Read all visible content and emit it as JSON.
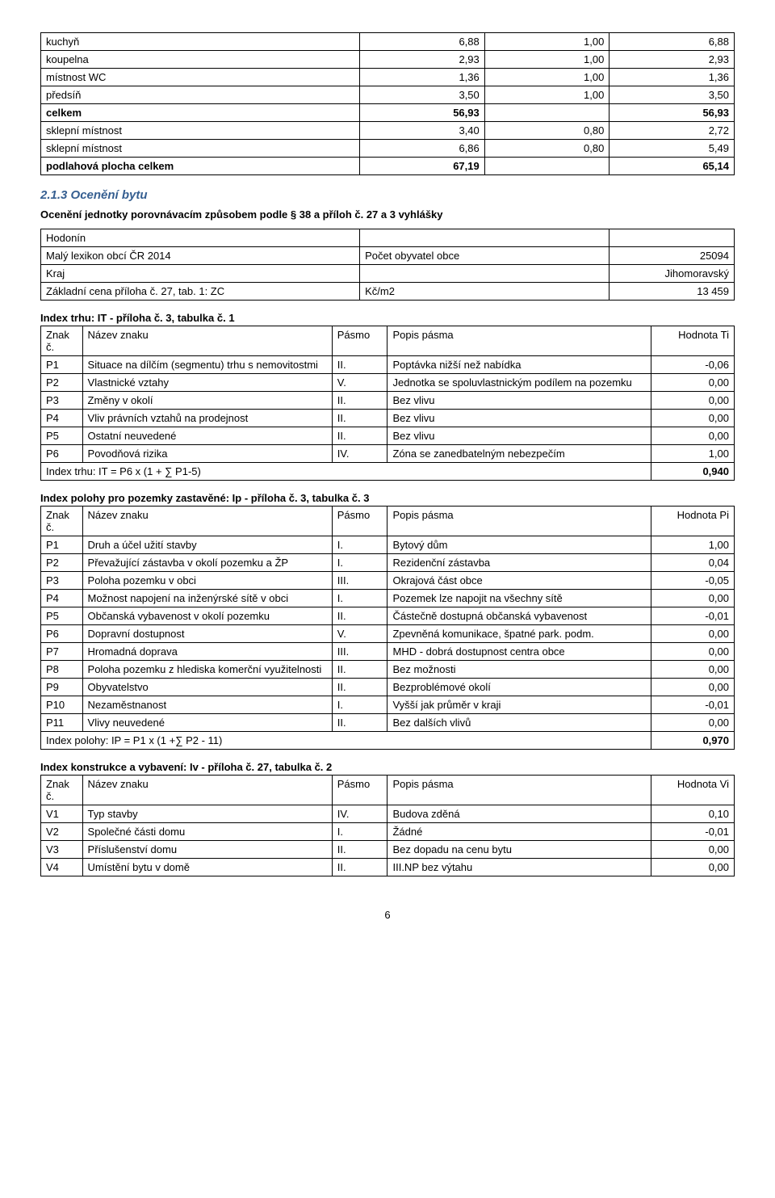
{
  "areas_table": {
    "rows": [
      {
        "name": "kuchyň",
        "a": "6,88",
        "b": "1,00",
        "c": "6,88"
      },
      {
        "name": "koupelna",
        "a": "2,93",
        "b": "1,00",
        "c": "2,93"
      },
      {
        "name": "místnost WC",
        "a": "1,36",
        "b": "1,00",
        "c": "1,36"
      },
      {
        "name": "předsíň",
        "a": "3,50",
        "b": "1,00",
        "c": "3,50"
      }
    ],
    "celkem_row": {
      "name": "celkem",
      "a": "56,93",
      "c": "56,93"
    },
    "sklep1": {
      "name": "sklepní místnost",
      "a": "3,40",
      "b": "0,80",
      "c": "2,72"
    },
    "sklep2": {
      "name": "sklepní místnost",
      "a": "6,86",
      "b": "0,80",
      "c": "5,49"
    },
    "plocha": {
      "name": "podlahová plocha celkem",
      "a": "67,19",
      "c": "65,14"
    }
  },
  "section_title": "2.1.3 Ocenění bytu",
  "intro": "Ocenění jednotky porovnávacím způsobem podle § 38 a příloh č. 27 a 3 vyhlášky",
  "base_table": {
    "rows": [
      [
        "Hodonín",
        "",
        ""
      ],
      [
        "Malý lexikon obcí ČR 2014",
        "Počet obyvatel obce",
        "25094"
      ],
      [
        "Kraj",
        "",
        "Jihomoravský"
      ],
      [
        "Základní cena příloha č. 27, tab. 1: ZC",
        "Kč/m2",
        "13 459"
      ]
    ]
  },
  "it_head": "Index trhu:   IT - příloha č. 3, tabulka č. 1",
  "hdr": {
    "c1": "Znak č.",
    "c2": "Název znaku",
    "c3": "Pásmo",
    "c4": "Popis pásma",
    "c5ti": "Hodnota Ti",
    "c5pi": "Hodnota Pi",
    "c5vi": "Hodnota Vi"
  },
  "it_rows": [
    {
      "k": "P1",
      "n": "Situace na dílčím (segmentu) trhu s nemovitostmi",
      "p": "II.",
      "d": "Poptávka nižší než nabídka",
      "v": "-0,06"
    },
    {
      "k": "P2",
      "n": "Vlastnické vztahy",
      "p": "V.",
      "d": "Jednotka se spoluvlastnickým podílem na pozemku",
      "v": "0,00"
    },
    {
      "k": "P3",
      "n": "Změny v okolí",
      "p": "II.",
      "d": "Bez vlivu",
      "v": "0,00"
    },
    {
      "k": "P4",
      "n": "Vliv právních vztahů na prodejnost",
      "p": "II.",
      "d": "Bez vlivu",
      "v": "0,00"
    },
    {
      "k": "P5",
      "n": "Ostatní neuvedené",
      "p": "II.",
      "d": "Bez vlivu",
      "v": "0,00"
    },
    {
      "k": "P6",
      "n": "Povodňová rizika",
      "p": "IV.",
      "d": "Zóna se zanedbatelným nebezpečím",
      "v": "1,00"
    }
  ],
  "it_sum": {
    "label": "Index trhu:   IT = P6 x (1 + ∑ P1-5)",
    "v": "0,940"
  },
  "ip_head": "Index polohy pro pozemky zastavěné:   Ip - příloha č. 3, tabulka č. 3",
  "ip_rows": [
    {
      "k": "P1",
      "n": "Druh a účel užití stavby",
      "p": "I.",
      "d": "Bytový dům",
      "v": "1,00"
    },
    {
      "k": "P2",
      "n": "Převažující zástavba v okolí pozemku a ŽP",
      "p": "I.",
      "d": "Rezidenční zástavba",
      "v": "0,04"
    },
    {
      "k": "P3",
      "n": "Poloha pozemku v obci",
      "p": "III.",
      "d": "Okrajová část obce",
      "v": "-0,05"
    },
    {
      "k": "P4",
      "n": "Možnost napojení na inženýrské sítě v obci",
      "p": "I.",
      "d": "Pozemek lze napojit na všechny sítě",
      "v": "0,00"
    },
    {
      "k": "P5",
      "n": "Občanská vybavenost v okolí pozemku",
      "p": "II.",
      "d": "Částečně dostupná občanská vybavenost",
      "v": "-0,01"
    },
    {
      "k": "P6",
      "n": "Dopravní dostupnost",
      "p": "V.",
      "d": "Zpevněná komunikace, špatné park. podm.",
      "v": "0,00"
    },
    {
      "k": "P7",
      "n": "Hromadná doprava",
      "p": "III.",
      "d": "MHD - dobrá dostupnost centra obce",
      "v": "0,00"
    },
    {
      "k": "P8",
      "n": "Poloha pozemku z hlediska komerční využitelnosti",
      "p": "II.",
      "d": "Bez možnosti",
      "v": "0,00"
    },
    {
      "k": "P9",
      "n": "Obyvatelstvo",
      "p": "II.",
      "d": "Bezproblémové okolí",
      "v": "0,00"
    },
    {
      "k": "P10",
      "n": "Nezaměstnanost",
      "p": "I.",
      "d": "Vyšší jak průměr v kraji",
      "v": "-0,01"
    },
    {
      "k": "P11",
      "n": "Vlivy neuvedené",
      "p": "II.",
      "d": "Bez dalších vlivů",
      "v": "0,00"
    }
  ],
  "ip_sum": {
    "label": "Index polohy: IP =  P1 x (1 +∑ P2 - 11)",
    "v": "0,970"
  },
  "iv_head": "Index konstrukce a vybavení:   Iv - příloha č. 27, tabulka č. 2",
  "iv_rows": [
    {
      "k": "V1",
      "n": "Typ stavby",
      "p": "IV.",
      "d": "Budova zděná",
      "v": "0,10"
    },
    {
      "k": "V2",
      "n": "Společné části domu",
      "p": "I.",
      "d": "Žádné",
      "v": "-0,01"
    },
    {
      "k": "V3",
      "n": "Příslušenství domu",
      "p": "II.",
      "d": "Bez dopadu na cenu bytu",
      "v": "0,00"
    },
    {
      "k": "V4",
      "n": "Umístění bytu v domě",
      "p": "II.",
      "d": "III.NP bez výtahu",
      "v": "0,00"
    }
  ],
  "page_number": "6"
}
